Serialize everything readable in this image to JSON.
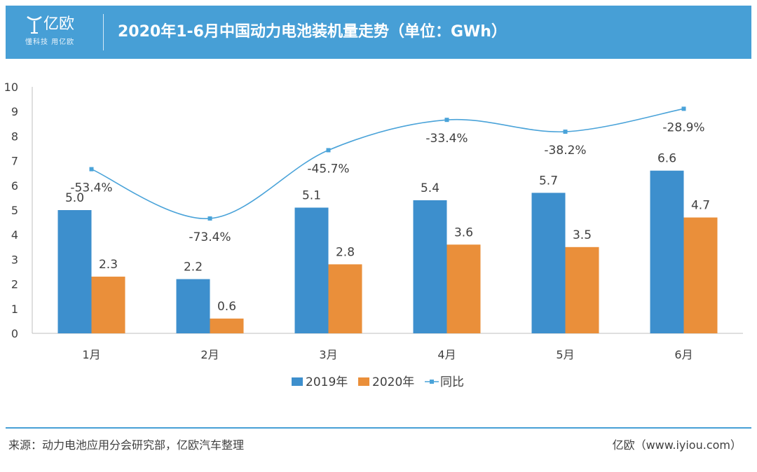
{
  "header": {
    "logo_name": "亿欧",
    "logo_slogan": "懂科技 用亿欧",
    "title": "2020年1-6月中国动力电池装机量走势（单位：GWh）"
  },
  "colors": {
    "header_bg": "#479fd6",
    "series_2019": "#3d8fcd",
    "series_2020": "#ea8f3a",
    "series_yoy": "#4aa3d9"
  },
  "chart_data": {
    "type": "bar",
    "categories": [
      "1月",
      "2月",
      "3月",
      "4月",
      "5月",
      "6月"
    ],
    "y_ticks": [
      "0",
      "1",
      "2",
      "3",
      "4",
      "5",
      "6",
      "7",
      "8",
      "9",
      "10"
    ],
    "ylim": [
      0,
      10
    ],
    "series": [
      {
        "name": "2019年",
        "type": "bar",
        "values": [
          5.0,
          2.2,
          5.1,
          5.4,
          5.7,
          6.6
        ],
        "labels": [
          "5.0",
          "2.2",
          "5.1",
          "5.4",
          "5.7",
          "6.6"
        ]
      },
      {
        "name": "2020年",
        "type": "bar",
        "values": [
          2.3,
          0.6,
          2.8,
          3.6,
          3.5,
          4.7
        ],
        "labels": [
          "2.3",
          "0.6",
          "2.8",
          "3.6",
          "3.5",
          "4.7"
        ]
      },
      {
        "name": "同比",
        "type": "line",
        "values": [
          -53.4,
          -73.4,
          -45.7,
          -33.4,
          -38.2,
          -28.9
        ],
        "labels": [
          "-53.4%",
          "-73.4%",
          "-45.7%",
          "-33.4%",
          "-38.2%",
          "-28.9%"
        ]
      }
    ],
    "legend_position": "bottom-center",
    "grid": false
  },
  "footer": {
    "source": "来源：动力电池应用分会研究部，亿欧汽车整理",
    "site": "亿欧（www.iyiou.com）"
  }
}
